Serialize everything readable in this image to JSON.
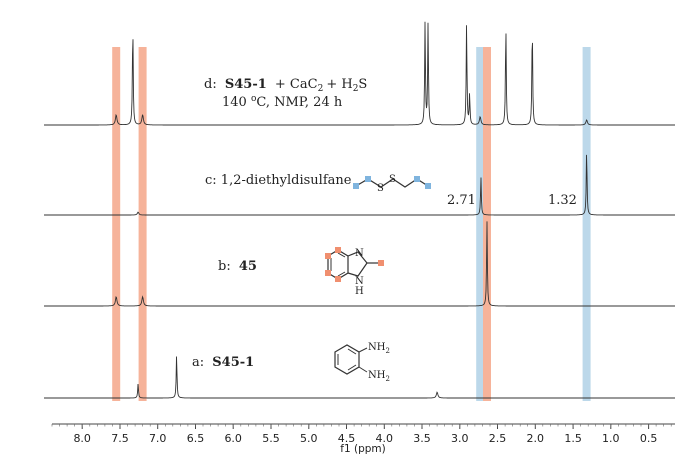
{
  "chart_data": {
    "type": "line",
    "subtype": "stacked NMR spectra",
    "xlabel": "f1 (ppm)",
    "xlim": [
      8.4,
      0.15
    ],
    "x_direction": "reversed",
    "x_ticks": [
      "8.0",
      "7.5",
      "7.0",
      "6.5",
      "6.0",
      "5.5",
      "5.0",
      "4.5",
      "4.0",
      "3.5",
      "3.0",
      "2.5",
      "2.0",
      "1.5",
      "1.0",
      "0.5"
    ],
    "x_tick_values": [
      8.0,
      7.5,
      7.0,
      6.5,
      6.0,
      5.5,
      5.0,
      4.5,
      4.0,
      3.5,
      3.0,
      2.5,
      2.0,
      1.5,
      1.0,
      0.5
    ],
    "highlight_colors": {
      "orange": "#f6b39a",
      "blue": "#bcd8ea"
    },
    "highlight_bands": [
      {
        "center_ppm": 7.55,
        "color": "orange"
      },
      {
        "center_ppm": 7.2,
        "color": "orange"
      },
      {
        "center_ppm": 2.73,
        "color": "blue"
      },
      {
        "center_ppm": 2.64,
        "color": "orange"
      },
      {
        "center_ppm": 1.32,
        "color": "blue"
      }
    ],
    "series": [
      {
        "label": "d",
        "caption_prefix": "d:",
        "caption_bold": "S45-1",
        "caption_rest": "+ CaC",
        "caption_rest2": "+ H",
        "caption_rest3": "S",
        "sub_2": "2",
        "caption_line2": "140 ",
        "caption_line2_sup": "o",
        "caption_line2_rest": "C, NMP, 24 h",
        "peaks": [
          {
            "ppm": 7.55,
            "height": 0.1
          },
          {
            "ppm": 7.33,
            "height": 1.0
          },
          {
            "ppm": 7.2,
            "height": 0.1
          },
          {
            "ppm": 3.46,
            "height": 1.0
          },
          {
            "ppm": 3.42,
            "height": 1.0
          },
          {
            "ppm": 2.91,
            "height": 1.0
          },
          {
            "ppm": 2.87,
            "height": 0.3
          },
          {
            "ppm": 2.73,
            "height": 0.08
          },
          {
            "ppm": 2.39,
            "height": 1.0
          },
          {
            "ppm": 2.04,
            "height": 1.0
          },
          {
            "ppm": 1.32,
            "height": 0.05
          }
        ]
      },
      {
        "label": "c",
        "caption": "c: 1,2-diethyldisulfane",
        "annotations": [
          "2.71",
          "1.32"
        ],
        "peaks": [
          {
            "ppm": 7.26,
            "height": 0.04
          },
          {
            "ppm": 2.72,
            "height": 0.55
          },
          {
            "ppm": 1.32,
            "height": 0.95
          }
        ]
      },
      {
        "label": "b",
        "caption_prefix": "b:",
        "caption_bold": "45",
        "peaks": [
          {
            "ppm": 7.55,
            "height": 0.11
          },
          {
            "ppm": 7.2,
            "height": 0.11
          },
          {
            "ppm": 2.64,
            "height": 1.0
          }
        ]
      },
      {
        "label": "a",
        "caption_prefix": "a:",
        "caption_bold": "S45-1",
        "peaks": [
          {
            "ppm": 7.26,
            "height": 0.25
          },
          {
            "ppm": 6.75,
            "height": 0.75
          },
          {
            "ppm": 3.3,
            "height": 0.1
          }
        ]
      }
    ],
    "structures": {
      "disulfide_atom": "S",
      "benzimidazole_atoms": [
        "N",
        "N",
        "H"
      ],
      "phenylenediamine_atoms": [
        "NH",
        "2",
        "NH",
        "2"
      ]
    }
  }
}
